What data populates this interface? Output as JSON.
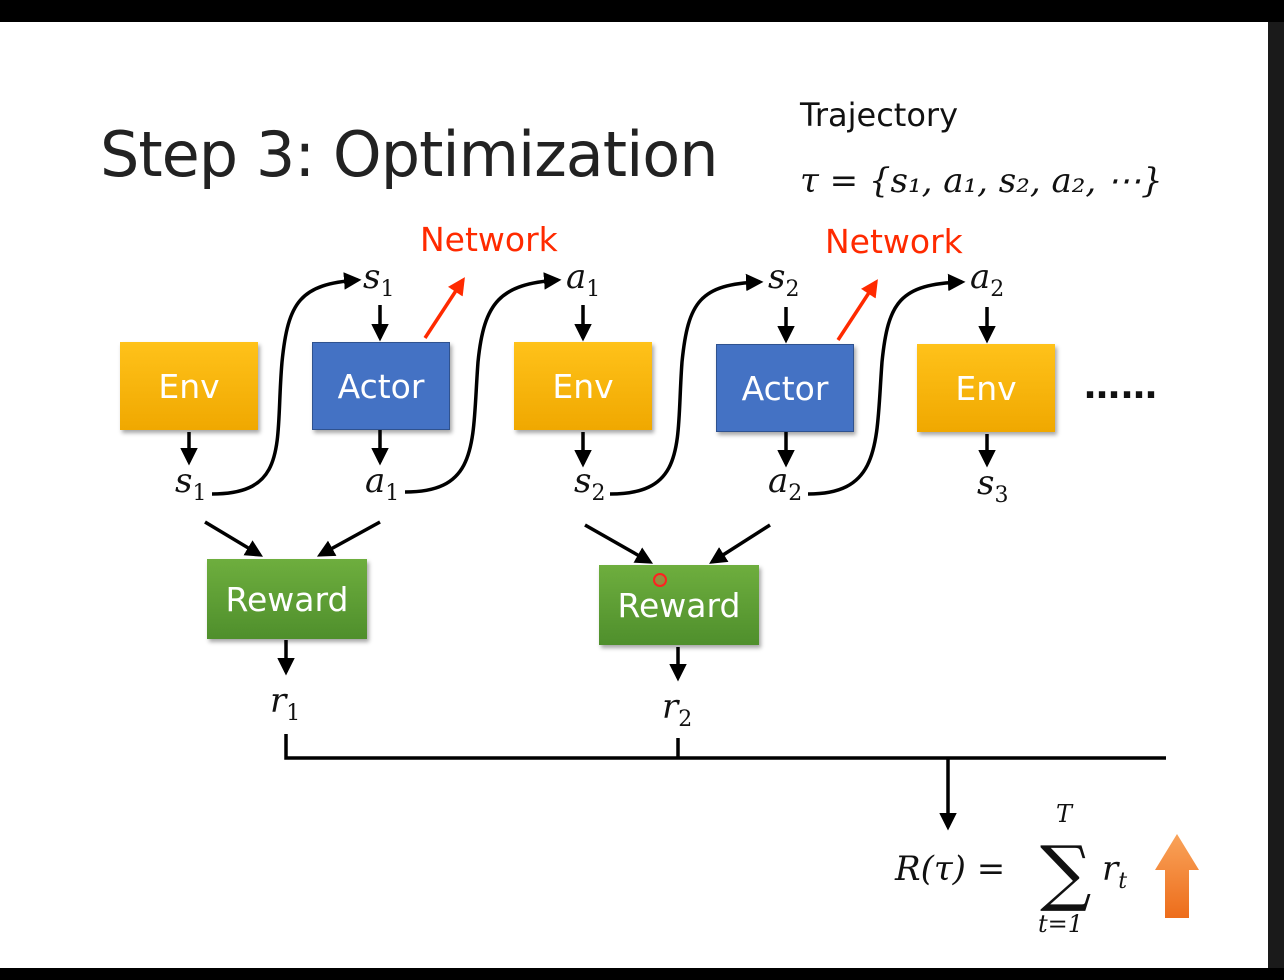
{
  "title": "Step 3: Optimization",
  "trajectory": {
    "label": "Trajectory",
    "formula": "τ = {s₁, a₁, s₂, a₂, ⋯}"
  },
  "boxes": {
    "env1": "Env",
    "actor1": "Actor",
    "env2": "Env",
    "actor2": "Actor",
    "env3": "Env",
    "reward1": "Reward",
    "reward2": "Reward"
  },
  "network_labels": [
    "Network",
    "Network"
  ],
  "ellipsis": "……",
  "variables": {
    "s1_top": {
      "base": "s",
      "sub": "1"
    },
    "a1_top": {
      "base": "a",
      "sub": "1"
    },
    "s2_top": {
      "base": "s",
      "sub": "2"
    },
    "a2_top": {
      "base": "a",
      "sub": "2"
    },
    "s1_bottom": {
      "base": "s",
      "sub": "1"
    },
    "a1_bottom": {
      "base": "a",
      "sub": "1"
    },
    "s2_bottom": {
      "base": "s",
      "sub": "2"
    },
    "a2_bottom": {
      "base": "a",
      "sub": "2"
    },
    "s3_bottom": {
      "base": "s",
      "sub": "3"
    },
    "r1": {
      "base": "r",
      "sub": "1"
    },
    "r2": {
      "base": "r",
      "sub": "2"
    }
  },
  "return_formula": {
    "lhs": "R(τ) =",
    "sigma": "∑",
    "upper": "T",
    "lower": "t=1",
    "term_base": "r",
    "term_sub": "t"
  },
  "colors": {
    "env": "#ffc000",
    "actor": "#4472c4",
    "reward": "#5b9b35",
    "network": "#ff2a00",
    "up_arrow": "#f5822a"
  },
  "icons": {
    "up_arrow": "orange-up-arrow-icon"
  }
}
